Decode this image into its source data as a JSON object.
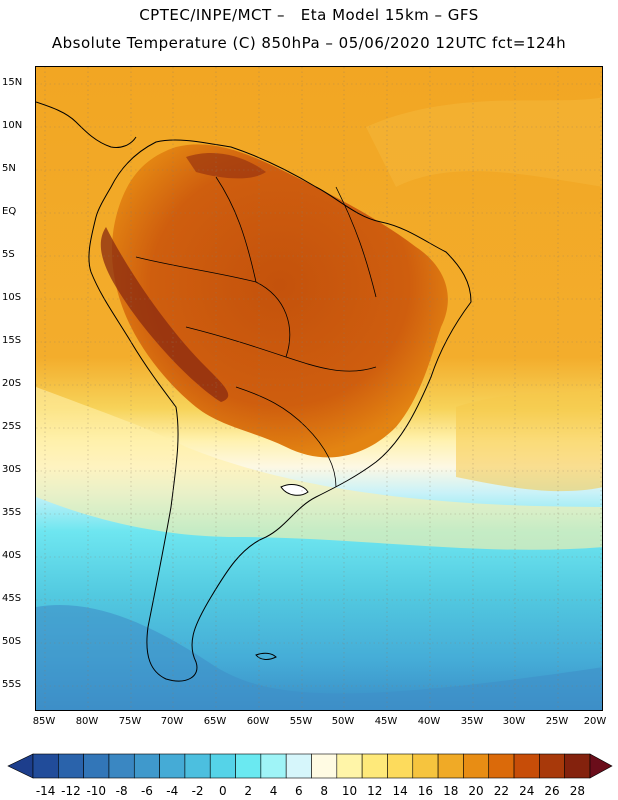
{
  "header": {
    "line1": "CPTEC/INPE/MCT –   Eta Model 15km – GFS",
    "line2": "Absolute Temperature (C) 850hPa – 05/06/2020 12UTC fct=124h"
  },
  "map": {
    "lat_labels": [
      "15N",
      "10N",
      "5N",
      "EQ",
      "5S",
      "10S",
      "15S",
      "20S",
      "25S",
      "30S",
      "35S",
      "40S",
      "45S",
      "50S",
      "55S"
    ],
    "lon_labels": [
      "85W",
      "80W",
      "75W",
      "70W",
      "65W",
      "60W",
      "55W",
      "50W",
      "45W",
      "40W",
      "35W",
      "30W",
      "25W",
      "20W"
    ]
  },
  "colorbar": {
    "labels": [
      "-14",
      "-12",
      "-10",
      "-8",
      "-6",
      "-4",
      "-2",
      "0",
      "2",
      "4",
      "6",
      "8",
      "10",
      "12",
      "14",
      "16",
      "18",
      "20",
      "22",
      "24",
      "26",
      "28"
    ],
    "low_color": "#1d3e8c",
    "high_color": "#6a0d1a",
    "colors": [
      "#214c9a",
      "#2a63ab",
      "#3276b8",
      "#3a87c2",
      "#3f99cc",
      "#45abd6",
      "#4cbfdf",
      "#55d3e8",
      "#6ae9f1",
      "#9ff4f7",
      "#d6f6fb",
      "#fffbe3",
      "#fff5a8",
      "#fee97a",
      "#fddb5c",
      "#f6c43e",
      "#f0aa26",
      "#e88d14",
      "#db6a0a",
      "#c74d08",
      "#a8390a",
      "#84220d"
    ]
  }
}
